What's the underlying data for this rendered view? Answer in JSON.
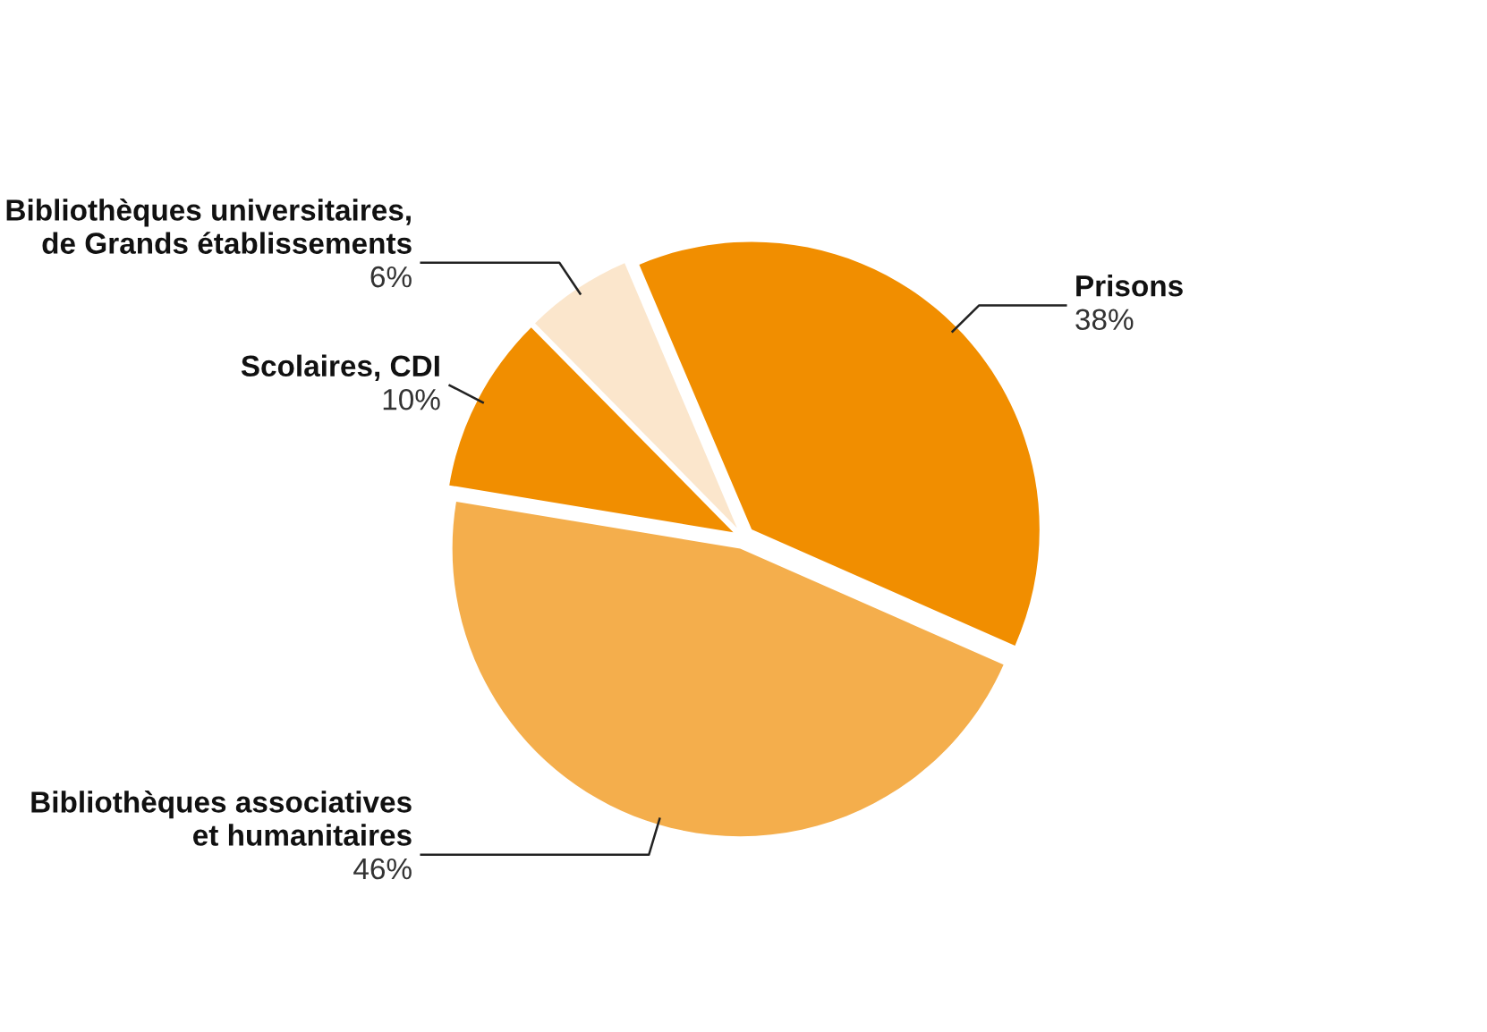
{
  "chart_data": {
    "type": "pie",
    "categories": [
      "Prisons",
      "Bibliothèques associatives\net humanitaires",
      "Scolaires, CDI",
      "Bibliothèques universitaires,\nde Grands établissements"
    ],
    "values": [
      38,
      46,
      10,
      6
    ],
    "value_labels": [
      "38%",
      "46%",
      "10%",
      "6%"
    ],
    "colors": [
      "#f18e00",
      "#f4ae4c",
      "#f18e00",
      "#fbe6cc"
    ],
    "legend": false
  }
}
